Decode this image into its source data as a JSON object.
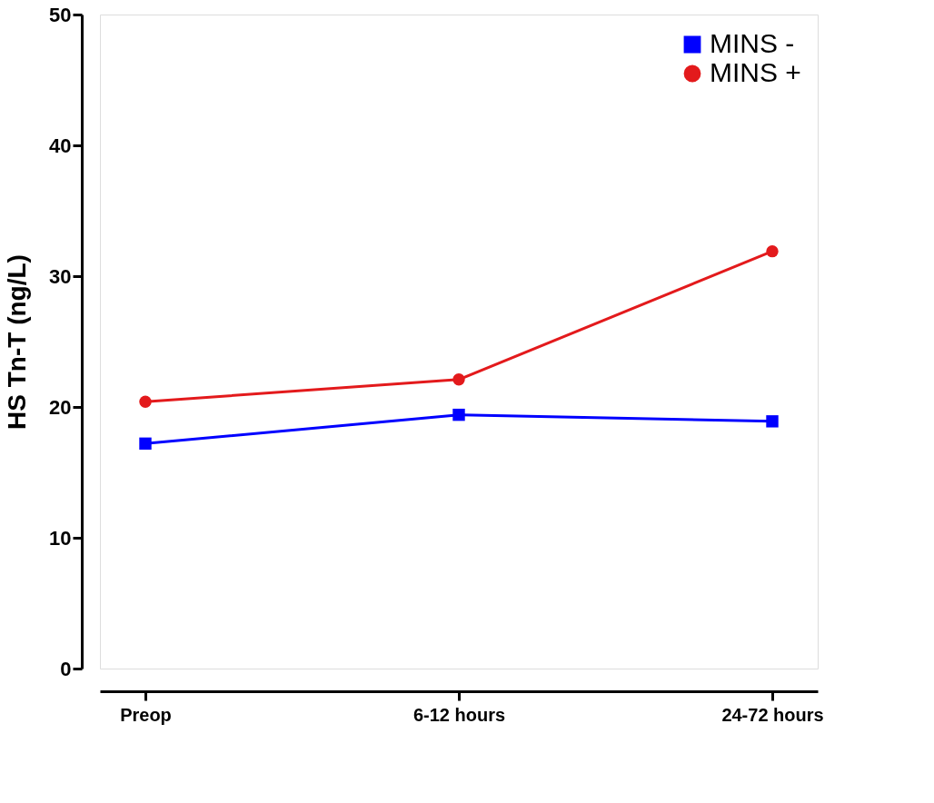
{
  "chart_data": {
    "type": "line",
    "ylabel": "HS Tn-T (ng/L)",
    "categories": [
      "Preop",
      "6-12 hours",
      "24-72 hours"
    ],
    "series": [
      {
        "name": "MINS -",
        "color": "#0000ff",
        "marker": "square",
        "values": [
          17.2,
          19.4,
          18.9
        ]
      },
      {
        "name": "MINS +",
        "color": "#e31a1c",
        "marker": "circle",
        "values": [
          20.4,
          22.1,
          31.9
        ]
      }
    ],
    "ylim": [
      0,
      50
    ],
    "yticks": [
      0,
      10,
      20,
      30,
      40,
      50
    ],
    "grid": false,
    "legend": "top right",
    "line_style": "solid"
  }
}
